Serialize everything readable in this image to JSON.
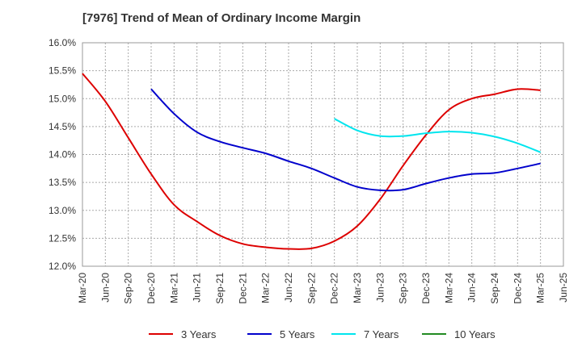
{
  "chart_data": {
    "type": "line",
    "title": "[7976]  Trend of Mean of Ordinary Income Margin",
    "xlabel": "",
    "ylabel": "",
    "x": [
      "Mar-20",
      "Jun-20",
      "Sep-20",
      "Dec-20",
      "Mar-21",
      "Jun-21",
      "Sep-21",
      "Dec-21",
      "Mar-22",
      "Jun-22",
      "Sep-22",
      "Dec-22",
      "Mar-23",
      "Jun-23",
      "Sep-23",
      "Dec-23",
      "Mar-24",
      "Jun-24",
      "Sep-24",
      "Dec-24",
      "Mar-25",
      "Jun-25"
    ],
    "y_ticks": [
      "12.0%",
      "12.5%",
      "13.0%",
      "13.5%",
      "14.0%",
      "14.5%",
      "15.0%",
      "15.5%",
      "16.0%"
    ],
    "ylim": [
      12.0,
      16.0
    ],
    "grid": true,
    "legend_position": "bottom",
    "series": [
      {
        "name": "3 Years",
        "color": "#dd0000",
        "values": [
          15.45,
          14.95,
          14.3,
          13.65,
          13.1,
          12.8,
          12.55,
          12.4,
          12.34,
          12.31,
          12.32,
          12.45,
          12.72,
          13.2,
          13.8,
          14.35,
          14.8,
          15.0,
          15.08,
          15.17,
          15.15,
          null
        ]
      },
      {
        "name": "5 Years",
        "color": "#0000cc",
        "values": [
          null,
          null,
          null,
          15.17,
          14.73,
          14.4,
          14.23,
          14.12,
          14.02,
          13.88,
          13.75,
          13.58,
          13.42,
          13.36,
          13.37,
          13.48,
          13.58,
          13.65,
          13.67,
          13.75,
          13.84,
          null
        ]
      },
      {
        "name": "7 Years",
        "color": "#00e5ee",
        "values": [
          null,
          null,
          null,
          null,
          null,
          null,
          null,
          null,
          null,
          null,
          null,
          14.64,
          14.43,
          14.33,
          14.33,
          14.38,
          14.41,
          14.39,
          14.32,
          14.2,
          14.04,
          null
        ]
      },
      {
        "name": "10 Years",
        "color": "#228b22",
        "values": [
          null,
          null,
          null,
          null,
          null,
          null,
          null,
          null,
          null,
          null,
          null,
          null,
          null,
          null,
          null,
          null,
          null,
          null,
          null,
          null,
          null,
          null
        ]
      }
    ]
  }
}
